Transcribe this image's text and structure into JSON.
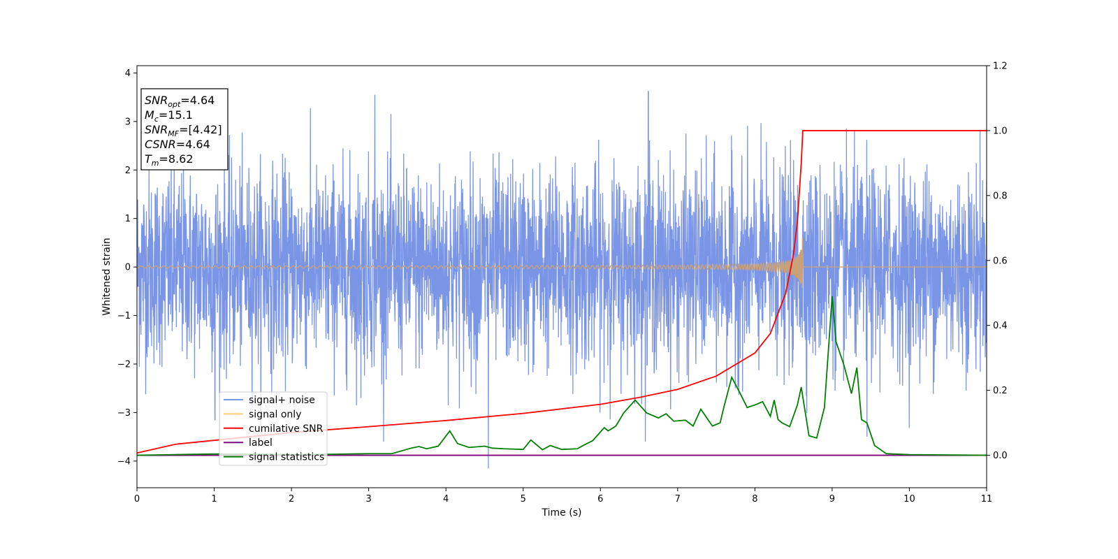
{
  "chart_data": {
    "type": "line",
    "xlabel": "Time (s)",
    "ylabel": "Whitened strain",
    "xlim": [
      0,
      11
    ],
    "ylim_left": [
      -4.55,
      4.15
    ],
    "ylim_right": [
      -0.1,
      1.2
    ],
    "x_ticks": [
      0,
      1,
      2,
      3,
      4,
      5,
      6,
      7,
      8,
      9,
      10,
      11
    ],
    "y_ticks_left": [
      -4,
      -3,
      -2,
      -1,
      0,
      1,
      2,
      3,
      4
    ],
    "y_ticks_right": [
      0.0,
      0.2,
      0.4,
      0.6,
      0.8,
      1.0,
      1.2
    ],
    "grid": false,
    "legend_position": "lower-left",
    "stats_box": {
      "position": "top-left",
      "lines": [
        {
          "base": "SNR",
          "sub": "opt",
          "value": "=4.64"
        },
        {
          "base": "M",
          "sub": "c",
          "value": "=15.1"
        },
        {
          "base": "SNR",
          "sub": "MF",
          "value": "=[4.42]"
        },
        {
          "base": "CSNR",
          "sub": "",
          "value": "=4.64"
        },
        {
          "base": "T",
          "sub": "m",
          "value": "=8.62"
        }
      ]
    },
    "series": [
      {
        "name": "signal+ noise",
        "color": "#7b95e6",
        "axis": "left",
        "style": "noise",
        "amplitude_range": [
          -3.6,
          3.6
        ],
        "typical_std": 1.0,
        "extremes": [
          [
            3.08,
            3.55
          ],
          [
            6.62,
            3.62
          ],
          [
            4.55,
            -4.15
          ],
          [
            1.01,
            -3.15
          ],
          [
            9.45,
            -3.5
          ],
          [
            2.9,
            -2.7
          ]
        ]
      },
      {
        "name": "signal only",
        "color": "#c9a27a",
        "axis": "left",
        "style": "chirp",
        "merger_time": 8.62,
        "peak_amplitude": [
          0.72,
          -0.68
        ]
      },
      {
        "name": "cumilative SNR",
        "color": "#ff0000",
        "axis": "right",
        "x": [
          0,
          0.5,
          1,
          2,
          3,
          4,
          5,
          6,
          6.5,
          7,
          7.5,
          8,
          8.2,
          8.4,
          8.5,
          8.55,
          8.6,
          8.62,
          11
        ],
        "y": [
          0.007,
          0.034,
          0.046,
          0.07,
          0.088,
          0.107,
          0.129,
          0.157,
          0.178,
          0.203,
          0.244,
          0.315,
          0.375,
          0.5,
          0.62,
          0.72,
          0.9,
          1.0,
          1.0
        ]
      },
      {
        "name": "label",
        "color": "#800080",
        "axis": "right",
        "x": [
          0,
          11
        ],
        "y": [
          0.0,
          0.0
        ]
      },
      {
        "name": "signal statistics",
        "color": "#008000",
        "axis": "right",
        "x": [
          0,
          0.5,
          1,
          2,
          2.5,
          3,
          3.3,
          3.55,
          3.65,
          3.75,
          3.9,
          4.05,
          4.15,
          4.3,
          4.5,
          4.6,
          4.75,
          5.0,
          5.1,
          5.25,
          5.35,
          5.5,
          5.7,
          5.8,
          5.9,
          6.05,
          6.1,
          6.2,
          6.3,
          6.45,
          6.6,
          6.75,
          6.85,
          6.95,
          7.1,
          7.2,
          7.3,
          7.45,
          7.55,
          7.6,
          7.7,
          7.8,
          7.9,
          8.0,
          8.1,
          8.2,
          8.25,
          8.3,
          8.35,
          8.45,
          8.55,
          8.6,
          8.7,
          8.8,
          8.9,
          9.0,
          9.05,
          9.15,
          9.25,
          9.32,
          9.38,
          9.45,
          9.55,
          9.7,
          10.0,
          11.0
        ],
        "y": [
          0.0,
          0.002,
          0.004,
          0.002,
          0.003,
          0.005,
          0.005,
          0.022,
          0.027,
          0.02,
          0.028,
          0.075,
          0.036,
          0.024,
          0.028,
          0.022,
          0.02,
          0.018,
          0.047,
          0.017,
          0.03,
          0.018,
          0.02,
          0.033,
          0.045,
          0.085,
          0.075,
          0.09,
          0.13,
          0.17,
          0.13,
          0.115,
          0.128,
          0.105,
          0.108,
          0.09,
          0.142,
          0.09,
          0.1,
          0.15,
          0.24,
          0.195,
          0.147,
          0.155,
          0.165,
          0.12,
          0.17,
          0.11,
          0.1,
          0.088,
          0.155,
          0.21,
          0.06,
          0.053,
          0.147,
          0.49,
          0.35,
          0.28,
          0.19,
          0.27,
          0.11,
          0.1,
          0.03,
          0.005,
          0.002,
          0.0
        ]
      }
    ]
  }
}
